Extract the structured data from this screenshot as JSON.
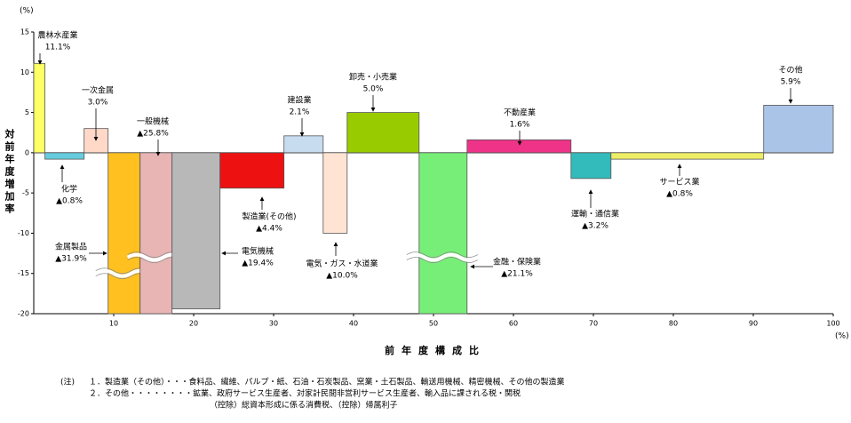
{
  "chart_data": {
    "type": "variable-width-bar",
    "y_unit": "(%)",
    "x_unit": "(%)",
    "ylabel": "対前年度増加率",
    "xlabel": "前年度構成比",
    "categories": [
      "農林水産業",
      "化学",
      "一次金属",
      "金属製品",
      "一般機械",
      "電気機械",
      "製造業(その他)",
      "建設業",
      "電気・ガス・水道業",
      "卸売・小売業",
      "金融・保険業",
      "不動産業",
      "運輸・通信業",
      "サービス業",
      "その他"
    ],
    "values": [
      11.1,
      -0.8,
      3.0,
      -31.9,
      -25.8,
      -19.4,
      -4.4,
      2.1,
      -10.0,
      5.0,
      -21.1,
      1.6,
      -3.2,
      -0.8,
      5.9
    ],
    "value_labels": [
      "11.1%",
      "▲0.8%",
      "3.0%",
      "▲31.9%",
      "▲25.8%",
      "▲19.4%",
      "▲4.4%",
      "2.1%",
      "▲10.0%",
      "5.0%",
      "▲21.1%",
      "1.6%",
      "▲3.2%",
      "▲0.8%",
      "5.9%"
    ],
    "widths": [
      1.4,
      4.9,
      3.0,
      4.0,
      4.0,
      6.0,
      8.0,
      4.9,
      3.0,
      9.0,
      6.0,
      13.0,
      5.0,
      19.1,
      8.7
    ],
    "colors": [
      "#ffff66",
      "#66ccdd",
      "#ffd8c8",
      "#ffc020",
      "#e8b4b4",
      "#b8b8b8",
      "#ee1111",
      "#c8dcf0",
      "#ffe4d4",
      "#99cc00",
      "#77ee77",
      "#ee3388",
      "#33bbbb",
      "#eeee66",
      "#aac4e8"
    ],
    "xlim": [
      0,
      100
    ],
    "xticks": [
      10,
      20,
      30,
      40,
      50,
      60,
      70,
      80,
      90,
      100
    ],
    "ylim": [
      -20,
      15
    ],
    "yticks": [
      15,
      10,
      5,
      0,
      -5,
      -10,
      -15,
      -20
    ],
    "notes": [
      "(注)",
      "１．製造業（その他）・・・食料品、繊維、パルプ・紙、石油・石炭製品、窯業・土石製品、輸送用機械、精密機械、その他の製造業",
      "２．その他・・・・・・・・鉱業、政府サービス生産者、対家計民間非営利サービス生産者、輸入品に課される税・関税",
      "（控除）総資本形成に係る消費税、（控除）帰属利子"
    ]
  }
}
